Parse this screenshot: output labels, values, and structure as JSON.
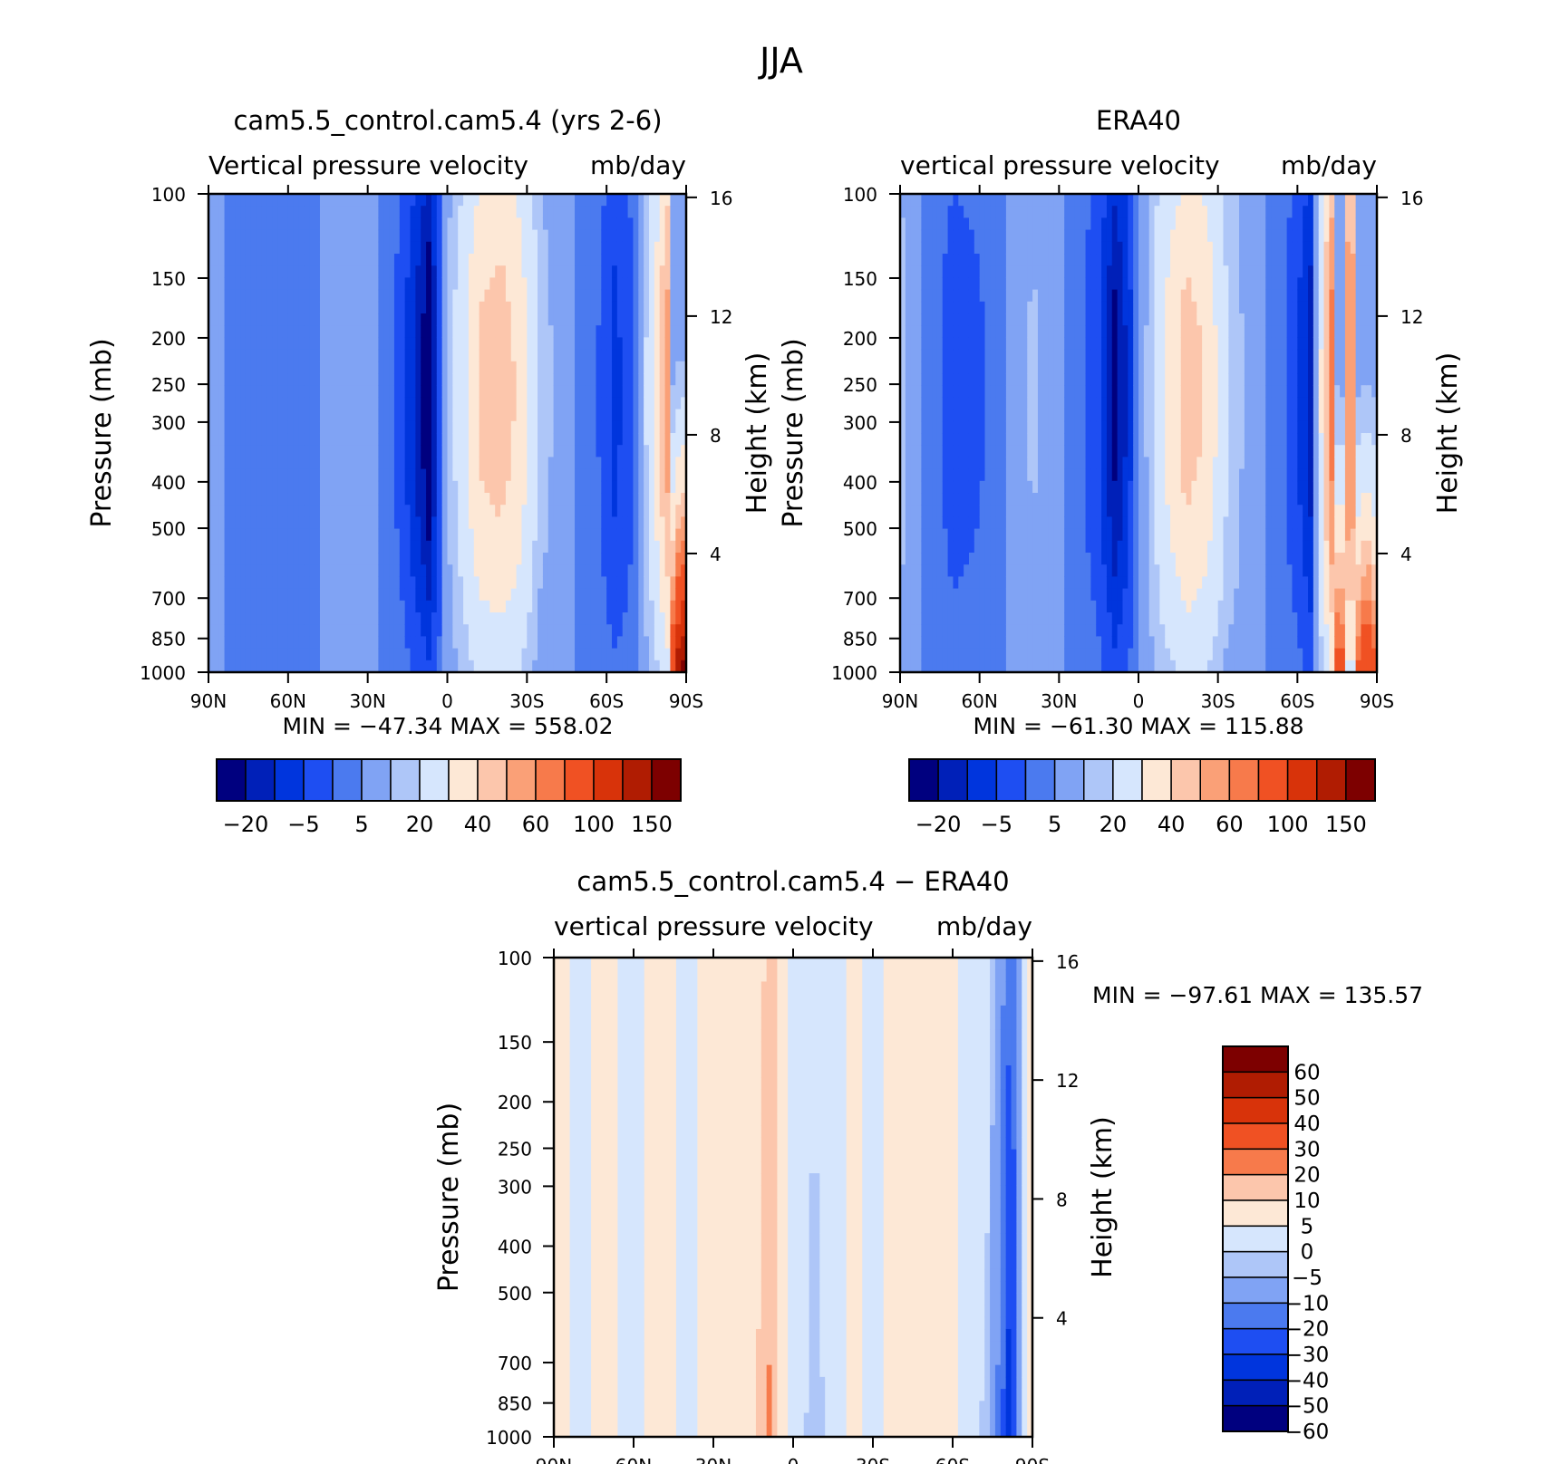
{
  "figure": {
    "title": "JJA"
  },
  "colors": {
    "blue_red_16": [
      "#00007f",
      "#0020b8",
      "#0035dd",
      "#1e4ef2",
      "#4b7aef",
      "#80a3f4",
      "#aec6f8",
      "#d6e6fd",
      "#fde8d6",
      "#fcc6ac",
      "#faa077",
      "#f77a4b",
      "#f05123",
      "#d8330a",
      "#b01c02",
      "#7d0000"
    ],
    "diff_14": [
      "#00007f",
      "#0020b8",
      "#0035dd",
      "#1e4ef2",
      "#4b7aef",
      "#80a3f4",
      "#aec6f8",
      "#d6e6fd",
      "#fde8d6",
      "#fcc6ac",
      "#f77a4b",
      "#f05123",
      "#d8330a",
      "#b01c02",
      "#7d0000"
    ]
  },
  "chart_data": [
    {
      "id": "model",
      "type": "heatmap",
      "title": "cam5.5_control.cam5.4 (yrs 2-6)",
      "subtitle_left": "Vertical pressure velocity",
      "subtitle_right": "mb/day",
      "ylabel": "Pressure (mb)",
      "ylabel_right": "Height (km)",
      "x_ticks": [
        "90N",
        "60N",
        "30N",
        "0",
        "30S",
        "60S",
        "90S"
      ],
      "y_ticks": [
        "100",
        "150",
        "200",
        "250",
        "300",
        "400",
        "500",
        "700",
        "850",
        "1000"
      ],
      "y_ticks_right": [
        "16",
        "12",
        "8",
        "4"
      ],
      "stats": "MIN = −47.34   MAX = 558.02",
      "levels": [
        -20,
        -15,
        -10,
        -5,
        0,
        5,
        10,
        20,
        30,
        40,
        50,
        60,
        80,
        100,
        125,
        150
      ],
      "colorbar_labels": [
        "−20",
        "−5",
        "5",
        "20",
        "40",
        "60",
        "100",
        "150"
      ],
      "profile": [
        {
          "lat": 90,
          "v": 3
        },
        {
          "lat": 80,
          "v": -2
        },
        {
          "lat": 70,
          "v": -4
        },
        {
          "lat": 60,
          "v": -4
        },
        {
          "lat": 50,
          "v": -1
        },
        {
          "lat": 40,
          "v": 5
        },
        {
          "lat": 30,
          "v": 2
        },
        {
          "lat": 25,
          "v": -1
        },
        {
          "lat": 18,
          "v": -7
        },
        {
          "lat": 12,
          "v": -16
        },
        {
          "lat": 7,
          "v": -25
        },
        {
          "lat": 3,
          "v": -10
        },
        {
          "lat": 0,
          "v": 5
        },
        {
          "lat": -5,
          "v": 15
        },
        {
          "lat": -12,
          "v": 32
        },
        {
          "lat": -20,
          "v": 36
        },
        {
          "lat": -27,
          "v": 28
        },
        {
          "lat": -35,
          "v": 8
        },
        {
          "lat": -45,
          "v": 1
        },
        {
          "lat": -55,
          "v": -3
        },
        {
          "lat": -63,
          "v": -12
        },
        {
          "lat": -70,
          "v": -6
        },
        {
          "lat": -78,
          "v": 20
        },
        {
          "lat": -83,
          "v": 45
        },
        {
          "lat": -88,
          "v": 130
        }
      ]
    },
    {
      "id": "obs",
      "type": "heatmap",
      "title": "ERA40",
      "subtitle_left": "vertical pressure velocity",
      "subtitle_right": "mb/day",
      "ylabel": "Pressure (mb)",
      "ylabel_right": "Height (km)",
      "x_ticks": [
        "90N",
        "60N",
        "30N",
        "0",
        "30S",
        "60S",
        "90S"
      ],
      "y_ticks": [
        "100",
        "150",
        "200",
        "250",
        "300",
        "400",
        "500",
        "700",
        "850",
        "1000"
      ],
      "y_ticks_right": [
        "16",
        "12",
        "8",
        "4"
      ],
      "stats": "MIN = −61.30   MAX = 115.88",
      "levels": [
        -20,
        -15,
        -10,
        -5,
        0,
        5,
        10,
        20,
        30,
        40,
        50,
        60,
        80,
        100,
        125,
        150
      ],
      "colorbar_labels": [
        "−20",
        "−5",
        "5",
        "20",
        "40",
        "60",
        "100",
        "150"
      ],
      "profile": [
        {
          "lat": 90,
          "v": 8
        },
        {
          "lat": 80,
          "v": -2
        },
        {
          "lat": 70,
          "v": -8
        },
        {
          "lat": 60,
          "v": -6
        },
        {
          "lat": 50,
          "v": 0
        },
        {
          "lat": 40,
          "v": 6
        },
        {
          "lat": 30,
          "v": 2
        },
        {
          "lat": 22,
          "v": -4
        },
        {
          "lat": 15,
          "v": -10
        },
        {
          "lat": 9,
          "v": -22
        },
        {
          "lat": 4,
          "v": -14
        },
        {
          "lat": 0,
          "v": -2
        },
        {
          "lat": -5,
          "v": 10
        },
        {
          "lat": -12,
          "v": 25
        },
        {
          "lat": -18,
          "v": 35
        },
        {
          "lat": -25,
          "v": 30
        },
        {
          "lat": -33,
          "v": 12
        },
        {
          "lat": -42,
          "v": 2
        },
        {
          "lat": -52,
          "v": -2
        },
        {
          "lat": -60,
          "v": -10
        },
        {
          "lat": -65,
          "v": -18
        },
        {
          "lat": -70,
          "v": 30
        },
        {
          "lat": -76,
          "v": 80
        },
        {
          "lat": -80,
          "v": 40
        },
        {
          "lat": -86,
          "v": 90
        },
        {
          "lat": -90,
          "v": 60
        }
      ]
    },
    {
      "id": "diff",
      "type": "heatmap",
      "title": "cam5.5_control.cam5.4 − ERA40",
      "subtitle_left": "vertical pressure velocity",
      "subtitle_right": "mb/day",
      "ylabel": "Pressure (mb)",
      "ylabel_right": "Height (km)",
      "x_ticks": [
        "90N",
        "60N",
        "30N",
        "0",
        "30S",
        "60S",
        "90S"
      ],
      "y_ticks": [
        "100",
        "150",
        "200",
        "250",
        "300",
        "400",
        "500",
        "700",
        "850",
        "1000"
      ],
      "y_ticks_right": [
        "16",
        "12",
        "8",
        "4"
      ],
      "stats": "MIN = −97.61   MAX = 135.57",
      "levels": [
        -60,
        -50,
        -40,
        -30,
        -20,
        -10,
        -5,
        0,
        5,
        10,
        20,
        30,
        40,
        50,
        60
      ],
      "colorbar_labels": [
        "60",
        "50",
        "40",
        "30",
        "20",
        "10",
        "5",
        "0",
        "−5",
        "−10",
        "−20",
        "−30",
        "−40",
        "−50",
        "−60"
      ],
      "profile": [
        {
          "lat": 90,
          "v": 2
        },
        {
          "lat": 80,
          "v": -2
        },
        {
          "lat": 72,
          "v": 2
        },
        {
          "lat": 62,
          "v": -2
        },
        {
          "lat": 50,
          "v": 2
        },
        {
          "lat": 40,
          "v": -2
        },
        {
          "lat": 32,
          "v": 3
        },
        {
          "lat": 22,
          "v": 2
        },
        {
          "lat": 15,
          "v": 3
        },
        {
          "lat": 11,
          "v": 8
        },
        {
          "lat": 8,
          "v": 12
        },
        {
          "lat": 5,
          "v": 3
        },
        {
          "lat": 0,
          "v": -2
        },
        {
          "lat": -8,
          "v": -7
        },
        {
          "lat": -15,
          "v": -3
        },
        {
          "lat": -22,
          "v": 2
        },
        {
          "lat": -30,
          "v": -2
        },
        {
          "lat": -40,
          "v": 2
        },
        {
          "lat": -50,
          "v": 3
        },
        {
          "lat": -58,
          "v": 2
        },
        {
          "lat": -66,
          "v": -3
        },
        {
          "lat": -73,
          "v": -6
        },
        {
          "lat": -78,
          "v": -25
        },
        {
          "lat": -82,
          "v": -50
        },
        {
          "lat": -86,
          "v": -8
        },
        {
          "lat": -90,
          "v": 5
        }
      ]
    }
  ]
}
